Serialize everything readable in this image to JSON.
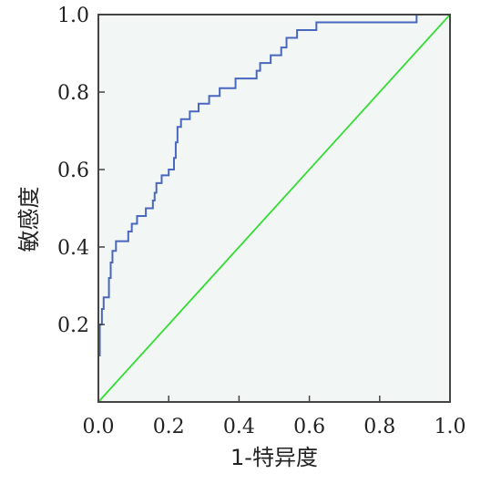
{
  "chart_data": {
    "type": "line",
    "title": "",
    "xlabel": "1-特异度",
    "ylabel": "敏感度",
    "xlim": [
      0.0,
      1.0
    ],
    "ylim": [
      0.0,
      1.0
    ],
    "x_ticks": [
      "0.0",
      "0.2",
      "0.4",
      "0.6",
      "0.8",
      "1.0"
    ],
    "y_ticks": [
      "0.2",
      "0.4",
      "0.6",
      "0.8",
      "1.0"
    ],
    "grid": false,
    "legend": "none",
    "colors": {
      "background": "#f2f6f5",
      "roc_curve": "#4a67c0",
      "reference_line": "#33dd33",
      "axis": "#444444"
    },
    "series": [
      {
        "role": "roc_curve",
        "points": [
          [
            0.0,
            0.0
          ],
          [
            0.0,
            0.12
          ],
          [
            0.004,
            0.12
          ],
          [
            0.004,
            0.2
          ],
          [
            0.01,
            0.2
          ],
          [
            0.01,
            0.24
          ],
          [
            0.015,
            0.24
          ],
          [
            0.015,
            0.27
          ],
          [
            0.03,
            0.27
          ],
          [
            0.03,
            0.32
          ],
          [
            0.035,
            0.32
          ],
          [
            0.035,
            0.36
          ],
          [
            0.04,
            0.36
          ],
          [
            0.04,
            0.39
          ],
          [
            0.05,
            0.39
          ],
          [
            0.05,
            0.415
          ],
          [
            0.085,
            0.415
          ],
          [
            0.085,
            0.44
          ],
          [
            0.095,
            0.44
          ],
          [
            0.095,
            0.46
          ],
          [
            0.11,
            0.46
          ],
          [
            0.11,
            0.48
          ],
          [
            0.135,
            0.48
          ],
          [
            0.135,
            0.5
          ],
          [
            0.155,
            0.5
          ],
          [
            0.155,
            0.52
          ],
          [
            0.16,
            0.52
          ],
          [
            0.16,
            0.54
          ],
          [
            0.165,
            0.54
          ],
          [
            0.165,
            0.565
          ],
          [
            0.18,
            0.565
          ],
          [
            0.18,
            0.585
          ],
          [
            0.2,
            0.585
          ],
          [
            0.2,
            0.6
          ],
          [
            0.215,
            0.6
          ],
          [
            0.215,
            0.63
          ],
          [
            0.22,
            0.63
          ],
          [
            0.22,
            0.67
          ],
          [
            0.225,
            0.67
          ],
          [
            0.225,
            0.71
          ],
          [
            0.235,
            0.71
          ],
          [
            0.235,
            0.73
          ],
          [
            0.26,
            0.73
          ],
          [
            0.26,
            0.75
          ],
          [
            0.285,
            0.75
          ],
          [
            0.285,
            0.77
          ],
          [
            0.315,
            0.77
          ],
          [
            0.315,
            0.79
          ],
          [
            0.345,
            0.79
          ],
          [
            0.345,
            0.81
          ],
          [
            0.39,
            0.81
          ],
          [
            0.39,
            0.835
          ],
          [
            0.45,
            0.835
          ],
          [
            0.45,
            0.855
          ],
          [
            0.46,
            0.855
          ],
          [
            0.46,
            0.875
          ],
          [
            0.49,
            0.875
          ],
          [
            0.49,
            0.895
          ],
          [
            0.52,
            0.895
          ],
          [
            0.52,
            0.915
          ],
          [
            0.535,
            0.915
          ],
          [
            0.535,
            0.94
          ],
          [
            0.565,
            0.94
          ],
          [
            0.565,
            0.96
          ],
          [
            0.62,
            0.96
          ],
          [
            0.62,
            0.98
          ],
          [
            0.905,
            0.98
          ],
          [
            0.905,
            1.0
          ],
          [
            1.0,
            1.0
          ]
        ]
      },
      {
        "role": "reference_line",
        "points": [
          [
            0.0,
            0.0
          ],
          [
            1.0,
            1.0
          ]
        ]
      }
    ]
  }
}
